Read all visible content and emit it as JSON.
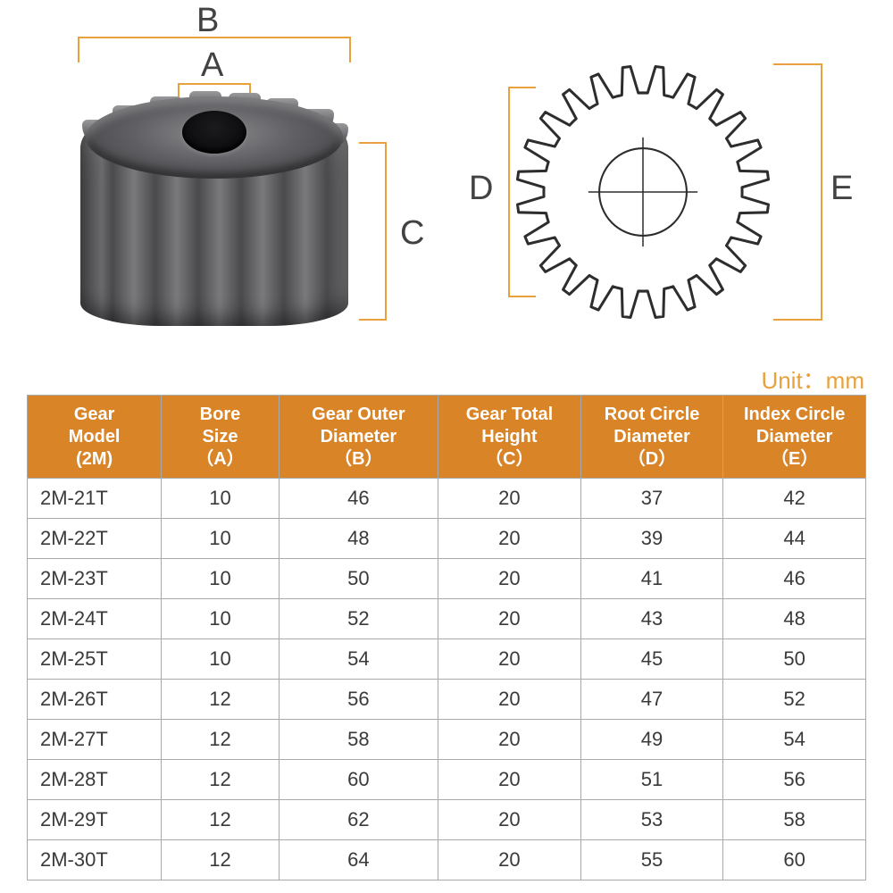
{
  "unit_label": "Unit：mm",
  "colors": {
    "header_bg": "#d98427",
    "header_text": "#ffffff",
    "cell_text": "#3a3a3a",
    "border": "#a9a9a9",
    "dim_line": "#e8a13c",
    "label_text": "#424242",
    "schematic_stroke": "#2d2d2d",
    "background": "#ffffff"
  },
  "typography": {
    "label_fontsize": 38,
    "header_fontsize": 20,
    "cell_fontsize": 22,
    "unit_fontsize": 26,
    "font_family": "Arial"
  },
  "diagram": {
    "labels": {
      "A": "A",
      "B": "B",
      "C": "C",
      "D": "D",
      "E": "E"
    },
    "schematic": {
      "teeth": 24,
      "outer_r": 150,
      "root_r": 118,
      "bore_r": 52
    }
  },
  "table": {
    "columns": [
      {
        "line1": "Gear",
        "line2": "Model",
        "sub": "(2M)"
      },
      {
        "line1": "Bore",
        "line2": "Size",
        "sub": "（A）"
      },
      {
        "line1": "Gear Outer",
        "line2": "Diameter",
        "sub": "（B）"
      },
      {
        "line1": "Gear Total",
        "line2": "Height",
        "sub": "（C）"
      },
      {
        "line1": "Root Circle",
        "line2": "Diameter",
        "sub": "（D）"
      },
      {
        "line1": "Index Circle",
        "line2": "Diameter",
        "sub": "（E）"
      }
    ],
    "col_widths_pct": [
      16,
      14,
      19,
      17,
      17,
      17
    ],
    "rows": [
      [
        "2M-21T",
        "10",
        "46",
        "20",
        "37",
        "42"
      ],
      [
        "2M-22T",
        "10",
        "48",
        "20",
        "39",
        "44"
      ],
      [
        "2M-23T",
        "10",
        "50",
        "20",
        "41",
        "46"
      ],
      [
        "2M-24T",
        "10",
        "52",
        "20",
        "43",
        "48"
      ],
      [
        "2M-25T",
        "10",
        "54",
        "20",
        "45",
        "50"
      ],
      [
        "2M-26T",
        "12",
        "56",
        "20",
        "47",
        "52"
      ],
      [
        "2M-27T",
        "12",
        "58",
        "20",
        "49",
        "54"
      ],
      [
        "2M-28T",
        "12",
        "60",
        "20",
        "51",
        "56"
      ],
      [
        "2M-29T",
        "12",
        "62",
        "20",
        "53",
        "58"
      ],
      [
        "2M-30T",
        "12",
        "64",
        "20",
        "55",
        "60"
      ]
    ]
  }
}
